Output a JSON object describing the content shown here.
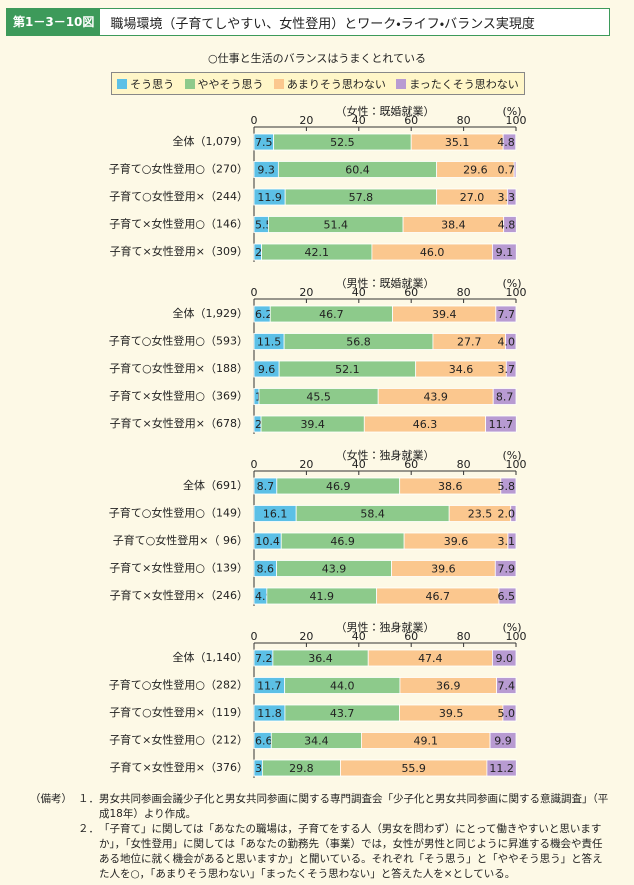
{
  "header": {
    "label": "第1－3－10図",
    "title": "職場環境（子育てしやすい、女性登用）とワーク・ライフ・バランス実現度"
  },
  "subtitle": "○仕事と生活のバランスはうまくとれている",
  "legend": [
    {
      "name": "そう思う",
      "color": "#5cc0e6"
    },
    {
      "name": "ややそう思う",
      "color": "#8dca8b"
    },
    {
      "name": "あまりそう思わない",
      "color": "#fbc78e"
    },
    {
      "name": "まったくそう思わない",
      "color": "#b89bd2"
    }
  ],
  "chart_data": [
    {
      "type": "bar",
      "orientation": "horizontal",
      "stacked": true,
      "title": "（女性：既婚就業）",
      "unit": "(%)",
      "categories": [
        "全体（1,079）",
        "子育て○女性登用○（270）",
        "子育て○女性登用×（244）",
        "子育て×女性登用○（146）",
        "子育て×女性登用×（309）"
      ],
      "series": [
        {
          "values": [
            7.5,
            9.3,
            11.9,
            5.5,
            2.9
          ]
        },
        {
          "values": [
            52.5,
            60.4,
            57.8,
            51.4,
            42.1
          ]
        },
        {
          "values": [
            35.1,
            29.6,
            27.0,
            38.4,
            46.0
          ],
          "value_labels": [
            "35.1",
            "29.6",
            "27.0",
            "38.4",
            "46.0"
          ]
        },
        {
          "values": [
            4.8,
            0.7,
            3.3,
            4.8,
            9.1
          ]
        }
      ],
      "xlim": [
        0,
        100
      ],
      "xticks": [
        0,
        20,
        40,
        60,
        80,
        100
      ]
    },
    {
      "type": "bar",
      "orientation": "horizontal",
      "stacked": true,
      "title": "（男性：既婚就業）",
      "unit": "(%)",
      "categories": [
        "全体（1,929）",
        "子育て○女性登用○（593）",
        "子育て○女性登用×（188）",
        "子育て×女性登用○（369）",
        "子育て×女性登用×（678）"
      ],
      "series": [
        {
          "values": [
            6.2,
            11.5,
            9.6,
            1.9,
            2.7
          ]
        },
        {
          "values": [
            46.7,
            56.8,
            52.1,
            45.5,
            39.4
          ]
        },
        {
          "values": [
            39.4,
            27.7,
            34.6,
            43.9,
            46.3
          ]
        },
        {
          "values": [
            7.7,
            4.0,
            3.7,
            8.7,
            11.7
          ],
          "value_labels": [
            "7.7",
            "4.0",
            "3.7",
            "8.7",
            "11.7"
          ]
        }
      ],
      "xlim": [
        0,
        100
      ],
      "xticks": [
        0,
        20,
        40,
        60,
        80,
        100
      ]
    },
    {
      "type": "bar",
      "orientation": "horizontal",
      "stacked": true,
      "title": "（女性：独身就業）",
      "unit": "(%)",
      "categories": [
        "全体（691）",
        "子育て○女性登用○（149）",
        "子育て○女性登用×（ 96）",
        "子育て×女性登用○（139）",
        "子育て×女性登用×（246）"
      ],
      "series": [
        {
          "values": [
            8.7,
            16.1,
            10.4,
            8.6,
            4.9
          ]
        },
        {
          "values": [
            46.9,
            58.4,
            46.9,
            43.9,
            41.9
          ]
        },
        {
          "values": [
            38.6,
            23.5,
            39.6,
            39.6,
            46.7
          ]
        },
        {
          "values": [
            5.8,
            2.0,
            3.1,
            7.9,
            6.5
          ],
          "value_labels": [
            "5.8",
            "2.0",
            "3.1",
            "7.9",
            "6.5"
          ]
        }
      ],
      "xlim": [
        0,
        100
      ],
      "xticks": [
        0,
        20,
        40,
        60,
        80,
        100
      ]
    },
    {
      "type": "bar",
      "orientation": "horizontal",
      "stacked": true,
      "title": "（男性：独身就業）",
      "unit": "(%)",
      "categories": [
        "全体（1,140）",
        "子育て○女性登用○（282）",
        "子育て○女性登用×（119）",
        "子育て×女性登用○（212）",
        "子育て×女性登用×（376）"
      ],
      "series": [
        {
          "values": [
            7.2,
            11.7,
            11.8,
            6.6,
            3.2
          ]
        },
        {
          "values": [
            36.4,
            44.0,
            43.7,
            34.4,
            29.8
          ],
          "value_labels": [
            "36.4",
            "44.0",
            "43.7",
            "34.4",
            "29.8"
          ]
        },
        {
          "values": [
            47.4,
            36.9,
            39.5,
            49.1,
            55.9
          ]
        },
        {
          "values": [
            9.0,
            7.4,
            5.0,
            9.9,
            11.2
          ],
          "value_labels": [
            "9.0",
            "7.4",
            "5.0",
            "9.9",
            "11.2"
          ]
        }
      ],
      "xlim": [
        0,
        100
      ],
      "xticks": [
        0,
        20,
        40,
        60,
        80,
        100
      ]
    }
  ],
  "notes": {
    "label": "（備考）",
    "items": [
      {
        "number": "１．",
        "text": "男女共同参画会議少子化と男女共同参画に関する専門調査会「少子化と男女共同参画に関する意識調査」（平成18年）より作成。"
      },
      {
        "number": "２．",
        "text": "「子育て」に関しては「あなたの職場は，子育てをする人（男女を問わず）にとって働きやすいと思いますか」，「女性登用」に関しては「あなたの勤務先（事業）では，女性が男性と同じように昇進する機会や責任ある地位に就く機会があると思いますか」と聞いている。それぞれ「そう思う」と「ややそう思う」と答えた人を○，「あまりそう思わない」「まったくそう思わない」と答えた人を×としている。"
      }
    ]
  }
}
